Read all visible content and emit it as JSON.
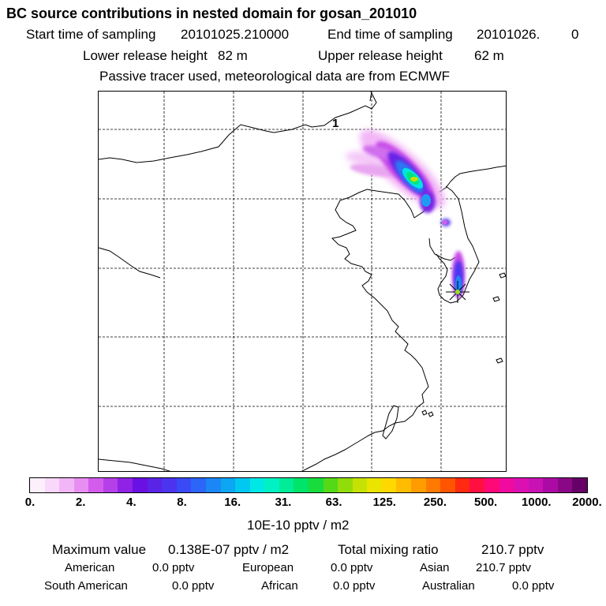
{
  "header": {
    "title": "BC  source contributions in nested domain for gosan_201010",
    "start_label": "Start time of sampling",
    "start_value": "20101025.210000",
    "end_label": "End time of sampling",
    "end_value": "20101026.",
    "end_extra": "0",
    "lower_label": "Lower release height",
    "lower_value": "82 m",
    "upper_label": "Upper release height",
    "upper_value": "62 m",
    "note": "Passive tracer used, meteorological data are from ECMWF"
  },
  "map": {
    "label_1": "1",
    "receptor_symbol": "✳"
  },
  "colorbar": {
    "ticks": [
      "0.",
      "2.",
      "4.",
      "8.",
      "16.",
      "31.",
      "63.",
      "125.",
      "250.",
      "500.",
      "1000.",
      "2000."
    ],
    "colors": [
      "#fdf0fd",
      "#f9d8fb",
      "#f2b6f6",
      "#e88ef2",
      "#d35cec",
      "#b53fe8",
      "#8f22e6",
      "#6a10e2",
      "#5a24e6",
      "#4b34ef",
      "#3a4af6",
      "#2b66f8",
      "#1b86f5",
      "#0ca6f2",
      "#00c8f0",
      "#00e8e6",
      "#00f2c4",
      "#00ec98",
      "#00e46a",
      "#18dc3c",
      "#55d818",
      "#92dc0a",
      "#c6e204",
      "#eae400",
      "#ffd800",
      "#ffbc00",
      "#ff9c00",
      "#ff7a00",
      "#ff5400",
      "#ff2a10",
      "#ff1040",
      "#ff0878",
      "#f00aa0",
      "#dc10b2",
      "#c812b4",
      "#ac0aa4",
      "#8a0886",
      "#660066"
    ],
    "unit": "10E-10 pptv / m2"
  },
  "summary": {
    "max_label": "Maximum value",
    "max_value": "0.138E-07 pptv / m2",
    "total_label": "Total mixing ratio",
    "total_value": "210.7 pptv",
    "regions": [
      {
        "name": "American",
        "value": "0.0 pptv"
      },
      {
        "name": "European",
        "value": "0.0 pptv"
      },
      {
        "name": "Asian",
        "value": "210.7 pptv"
      },
      {
        "name": "South American",
        "value": "0.0 pptv"
      },
      {
        "name": "African",
        "value": "0.0 pptv"
      },
      {
        "name": "Australian",
        "value": "0.0 pptv"
      }
    ]
  }
}
